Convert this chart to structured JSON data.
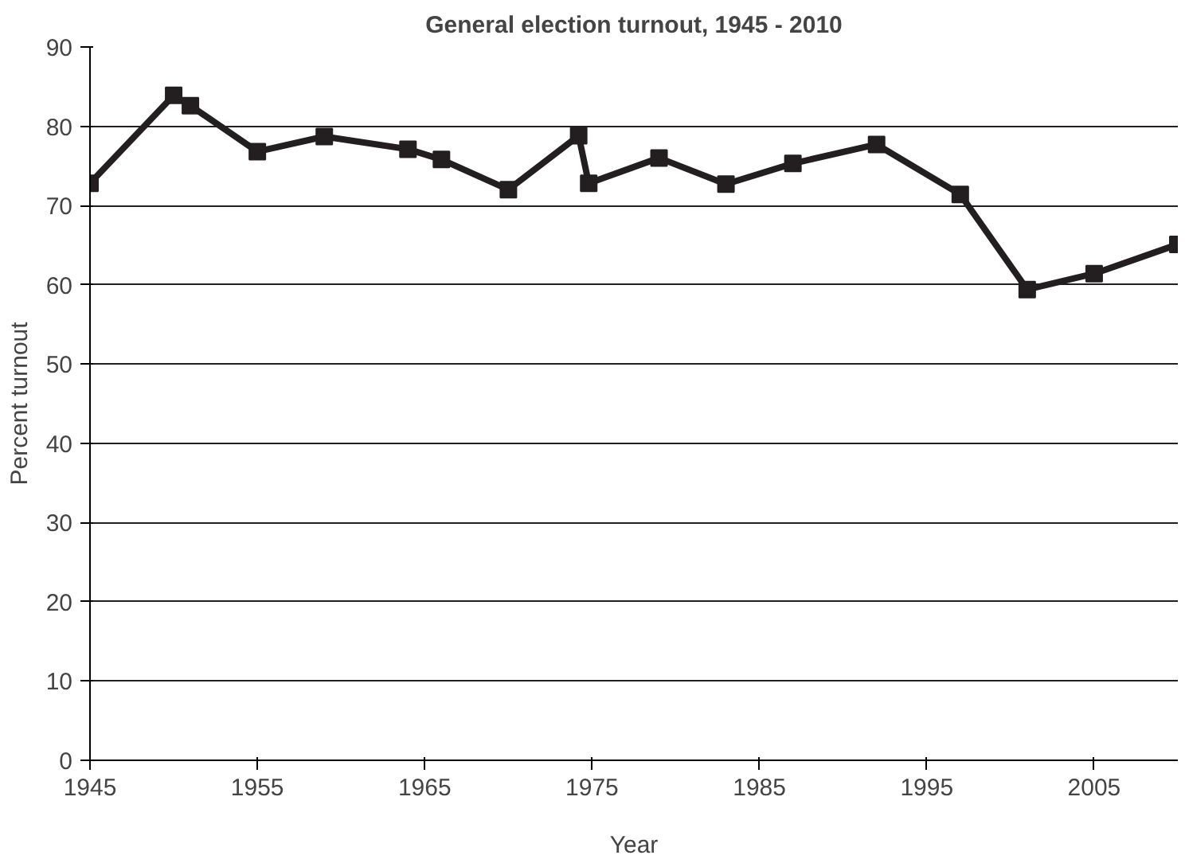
{
  "chart_data": {
    "type": "line",
    "title": "General election turnout, 1945 - 2010",
    "xlabel": "Year",
    "ylabel": "Percent turnout",
    "x": [
      1945,
      1950,
      1951,
      1955,
      1959,
      1964,
      1966,
      1970,
      1974.2,
      1974.8,
      1979,
      1983,
      1987,
      1992,
      1997,
      2001,
      2005,
      2010
    ],
    "series": [
      {
        "color": "#231f20",
        "values": [
          72.8,
          83.9,
          82.6,
          76.8,
          78.7,
          77.1,
          75.8,
          72.0,
          78.8,
          72.8,
          76.0,
          72.7,
          75.3,
          77.7,
          71.4,
          59.4,
          61.4,
          65.1
        ]
      }
    ],
    "xlim": [
      1945,
      2010
    ],
    "xticks": [
      1945,
      1955,
      1965,
      1975,
      1985,
      1995,
      2005
    ],
    "ylim": [
      0,
      90
    ],
    "yticks": [
      0,
      10,
      20,
      30,
      40,
      50,
      60,
      70,
      80,
      90
    ],
    "grid": "y",
    "marker": "square",
    "line_style": "solid"
  }
}
